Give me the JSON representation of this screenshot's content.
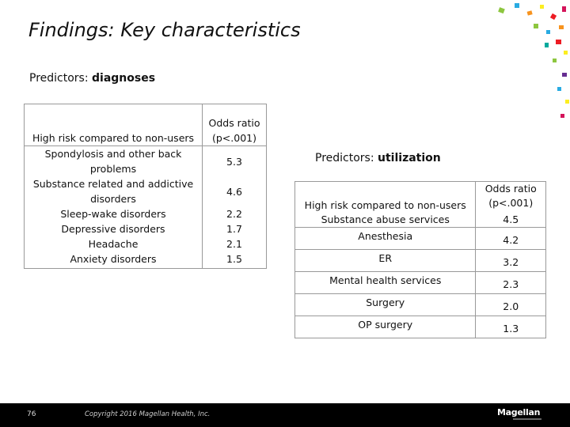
{
  "slide": {
    "title": "Findings: Key characteristics",
    "sub1_prefix": "Predictors: ",
    "sub1_bold": "diagnoses",
    "sub2_prefix": "Predictors: ",
    "sub2_bold": "utilization"
  },
  "table1": {
    "header_left": "High risk compared to non-users",
    "header_right_1": "Odds ratio",
    "header_right_2": "(p<.001)",
    "rows": [
      {
        "label": "Spondylosis and other back problems",
        "value": "5.3"
      },
      {
        "label": "Substance related and addictive disorders",
        "value": "4.6"
      },
      {
        "label": "Sleep-wake disorders",
        "value": "2.2"
      },
      {
        "label": "Depressive disorders",
        "value": "1.7"
      },
      {
        "label": "Headache",
        "value": "2.1"
      },
      {
        "label": "Anxiety disorders",
        "value": "1.5"
      }
    ]
  },
  "table2": {
    "header_left": "High risk compared to non-users",
    "header_right_1": "Odds ratio",
    "header_right_2": "(p<.001)",
    "rows": [
      {
        "label": "Substance abuse services",
        "value": "4.5"
      },
      {
        "label": "Anesthesia",
        "value": "4.2"
      },
      {
        "label": "ER",
        "value": "3.2"
      },
      {
        "label": "Mental health services",
        "value": "2.3"
      },
      {
        "label": "Surgery",
        "value": "2.0"
      },
      {
        "label": "OP surgery",
        "value": "1.3"
      }
    ]
  },
  "footer": {
    "page_number": "76",
    "copyright": "Copyright 2016 Magellan Health, Inc.",
    "logo": "Magellan"
  },
  "colors": {
    "confetti": [
      "#8dc63f",
      "#f7931e",
      "#ed1c24",
      "#29abe2",
      "#fcee21",
      "#d4145a",
      "#00a99d",
      "#662d91"
    ]
  }
}
